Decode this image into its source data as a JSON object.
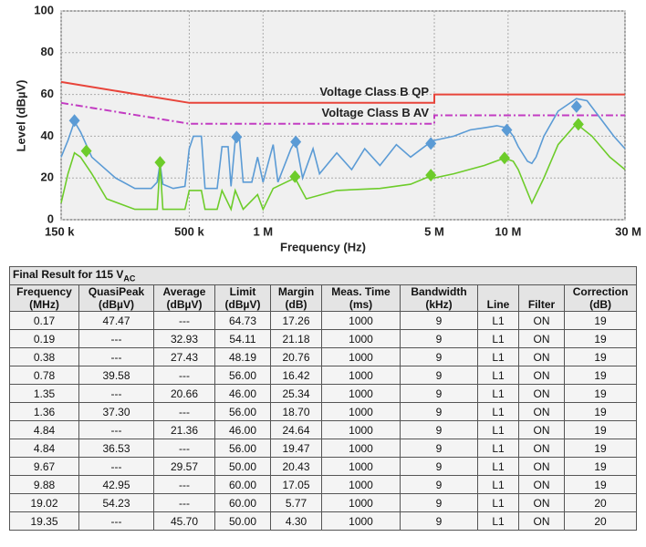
{
  "chart_data": {
    "type": "line",
    "x_label": "Frequency (Hz)",
    "y_label": "Level (dBµV)",
    "log_x": true,
    "grid": true,
    "xlim": [
      150000,
      30000000
    ],
    "xticks": [
      {
        "value": 150000,
        "label": "150 k"
      },
      {
        "value": 500000,
        "label": "500 k"
      },
      {
        "value": 1000000,
        "label": "1 M"
      },
      {
        "value": 5000000,
        "label": "5 M"
      },
      {
        "value": 10000000,
        "label": "10 M"
      },
      {
        "value": 30000000,
        "label": "30 M"
      }
    ],
    "ylim": [
      0,
      100
    ],
    "yticks": [
      0,
      20,
      40,
      60,
      80,
      100
    ],
    "series": [
      {
        "name": "Voltage Class B QP",
        "color": "#e8443a",
        "style": "solid",
        "x": [
          150000,
          500000,
          5000000,
          5000000,
          30000000
        ],
        "values": [
          66,
          56,
          56,
          60,
          60
        ]
      },
      {
        "name": "Voltage Class B AV",
        "color": "#c23cc2",
        "style": "dashdot",
        "x": [
          150000,
          500000,
          5000000,
          5000000,
          30000000
        ],
        "values": [
          56,
          46,
          46,
          50,
          50
        ]
      },
      {
        "color": "#5b9bd5",
        "style": "solid",
        "x": [
          150000,
          160000,
          170000,
          180000,
          200000,
          250000,
          300000,
          350000,
          370000,
          380000,
          390000,
          430000,
          480000,
          500000,
          520000,
          560000,
          580000,
          650000,
          680000,
          720000,
          740000,
          770000,
          800000,
          830000,
          900000,
          950000,
          1000000,
          1100000,
          1150000,
          1300000,
          1360000,
          1450000,
          1600000,
          1700000,
          2000000,
          2300000,
          2600000,
          3000000,
          3500000,
          4000000,
          4800000,
          5000000,
          6000000,
          7000000,
          8000000,
          9000000,
          9900000,
          10500000,
          11000000,
          12000000,
          12500000,
          13000000,
          14000000,
          16000000,
          19000000,
          21000000,
          24000000,
          27000000,
          30000000
        ],
        "values": [
          30,
          38,
          47,
          42,
          30,
          20,
          15,
          15,
          18,
          27,
          17,
          15,
          16,
          34,
          40,
          40,
          15,
          15,
          35,
          35,
          16,
          38,
          40,
          18,
          18,
          30,
          18,
          36,
          18,
          34,
          38,
          20,
          34,
          22,
          32,
          24,
          34,
          26,
          36,
          30,
          37,
          38,
          40,
          43,
          44,
          45,
          44,
          40,
          35,
          28,
          27,
          30,
          40,
          52,
          58,
          57,
          48,
          40,
          34
        ]
      },
      {
        "color": "#6dcc2a",
        "style": "solid",
        "x": [
          150000,
          160000,
          170000,
          180000,
          200000,
          230000,
          300000,
          370000,
          380000,
          390000,
          480000,
          500000,
          560000,
          580000,
          650000,
          680000,
          740000,
          770000,
          830000,
          950000,
          1000000,
          1100000,
          1350000,
          1500000,
          2000000,
          3000000,
          4000000,
          4840000,
          5000000,
          6000000,
          8000000,
          9670000,
          10500000,
          11000000,
          12500000,
          14000000,
          16000000,
          19000000,
          22000000,
          26000000,
          30000000
        ],
        "values": [
          8,
          22,
          32,
          30,
          22,
          10,
          5,
          5,
          27,
          5,
          5,
          14,
          14,
          5,
          5,
          14,
          5,
          14,
          5,
          12,
          5,
          15,
          20,
          10,
          14,
          15,
          17,
          21,
          20,
          22,
          26,
          29.5,
          28,
          24,
          8,
          20,
          36,
          46,
          40,
          30,
          24
        ]
      },
      {
        "color": "#5b9bd5",
        "style": "diamond",
        "x": [
          170000,
          780000,
          1360000,
          4840000,
          9880000,
          19020000
        ],
        "values": [
          47.47,
          39.58,
          37.3,
          36.53,
          42.95,
          54.23
        ]
      },
      {
        "color": "#6dcc2a",
        "style": "diamond",
        "x": [
          190000,
          380000,
          1350000,
          4840000,
          9670000,
          19350000
        ],
        "values": [
          32.93,
          27.43,
          20.66,
          21.36,
          29.57,
          45.7
        ]
      }
    ]
  },
  "table": {
    "title": "Final Result for 115 V",
    "title_sub": "AC",
    "columns": [
      [
        "Frequency",
        "(MHz)"
      ],
      [
        "QuasiPeak",
        "(dBµV)"
      ],
      [
        "Average",
        "(dBµV)"
      ],
      [
        "Limit",
        "(dBµV)"
      ],
      [
        "Margin",
        "(dB)"
      ],
      [
        "Meas. Time",
        "(ms)"
      ],
      [
        "Bandwidth",
        "(kHz)"
      ],
      [
        "Line"
      ],
      [
        "Filter"
      ],
      [
        "Correction",
        "(dB)"
      ]
    ],
    "rows": [
      [
        "0.17",
        "47.47",
        "---",
        "64.73",
        "17.26",
        "1000",
        "9",
        "L1",
        "ON",
        "19"
      ],
      [
        "0.19",
        "---",
        "32.93",
        "54.11",
        "21.18",
        "1000",
        "9",
        "L1",
        "ON",
        "19"
      ],
      [
        "0.38",
        "---",
        "27.43",
        "48.19",
        "20.76",
        "1000",
        "9",
        "L1",
        "ON",
        "19"
      ],
      [
        "0.78",
        "39.58",
        "---",
        "56.00",
        "16.42",
        "1000",
        "9",
        "L1",
        "ON",
        "19"
      ],
      [
        "1.35",
        "---",
        "20.66",
        "46.00",
        "25.34",
        "1000",
        "9",
        "L1",
        "ON",
        "19"
      ],
      [
        "1.36",
        "37.30",
        "---",
        "56.00",
        "18.70",
        "1000",
        "9",
        "L1",
        "ON",
        "19"
      ],
      [
        "4.84",
        "---",
        "21.36",
        "46.00",
        "24.64",
        "1000",
        "9",
        "L1",
        "ON",
        "19"
      ],
      [
        "4.84",
        "36.53",
        "---",
        "56.00",
        "19.47",
        "1000",
        "9",
        "L1",
        "ON",
        "19"
      ],
      [
        "9.67",
        "---",
        "29.57",
        "50.00",
        "20.43",
        "1000",
        "9",
        "L1",
        "ON",
        "19"
      ],
      [
        "9.88",
        "42.95",
        "---",
        "60.00",
        "17.05",
        "1000",
        "9",
        "L1",
        "ON",
        "19"
      ],
      [
        "19.02",
        "54.23",
        "---",
        "60.00",
        "5.77",
        "1000",
        "9",
        "L1",
        "ON",
        "20"
      ],
      [
        "19.35",
        "---",
        "45.70",
        "50.00",
        "4.30",
        "1000",
        "9",
        "L1",
        "ON",
        "20"
      ]
    ]
  }
}
